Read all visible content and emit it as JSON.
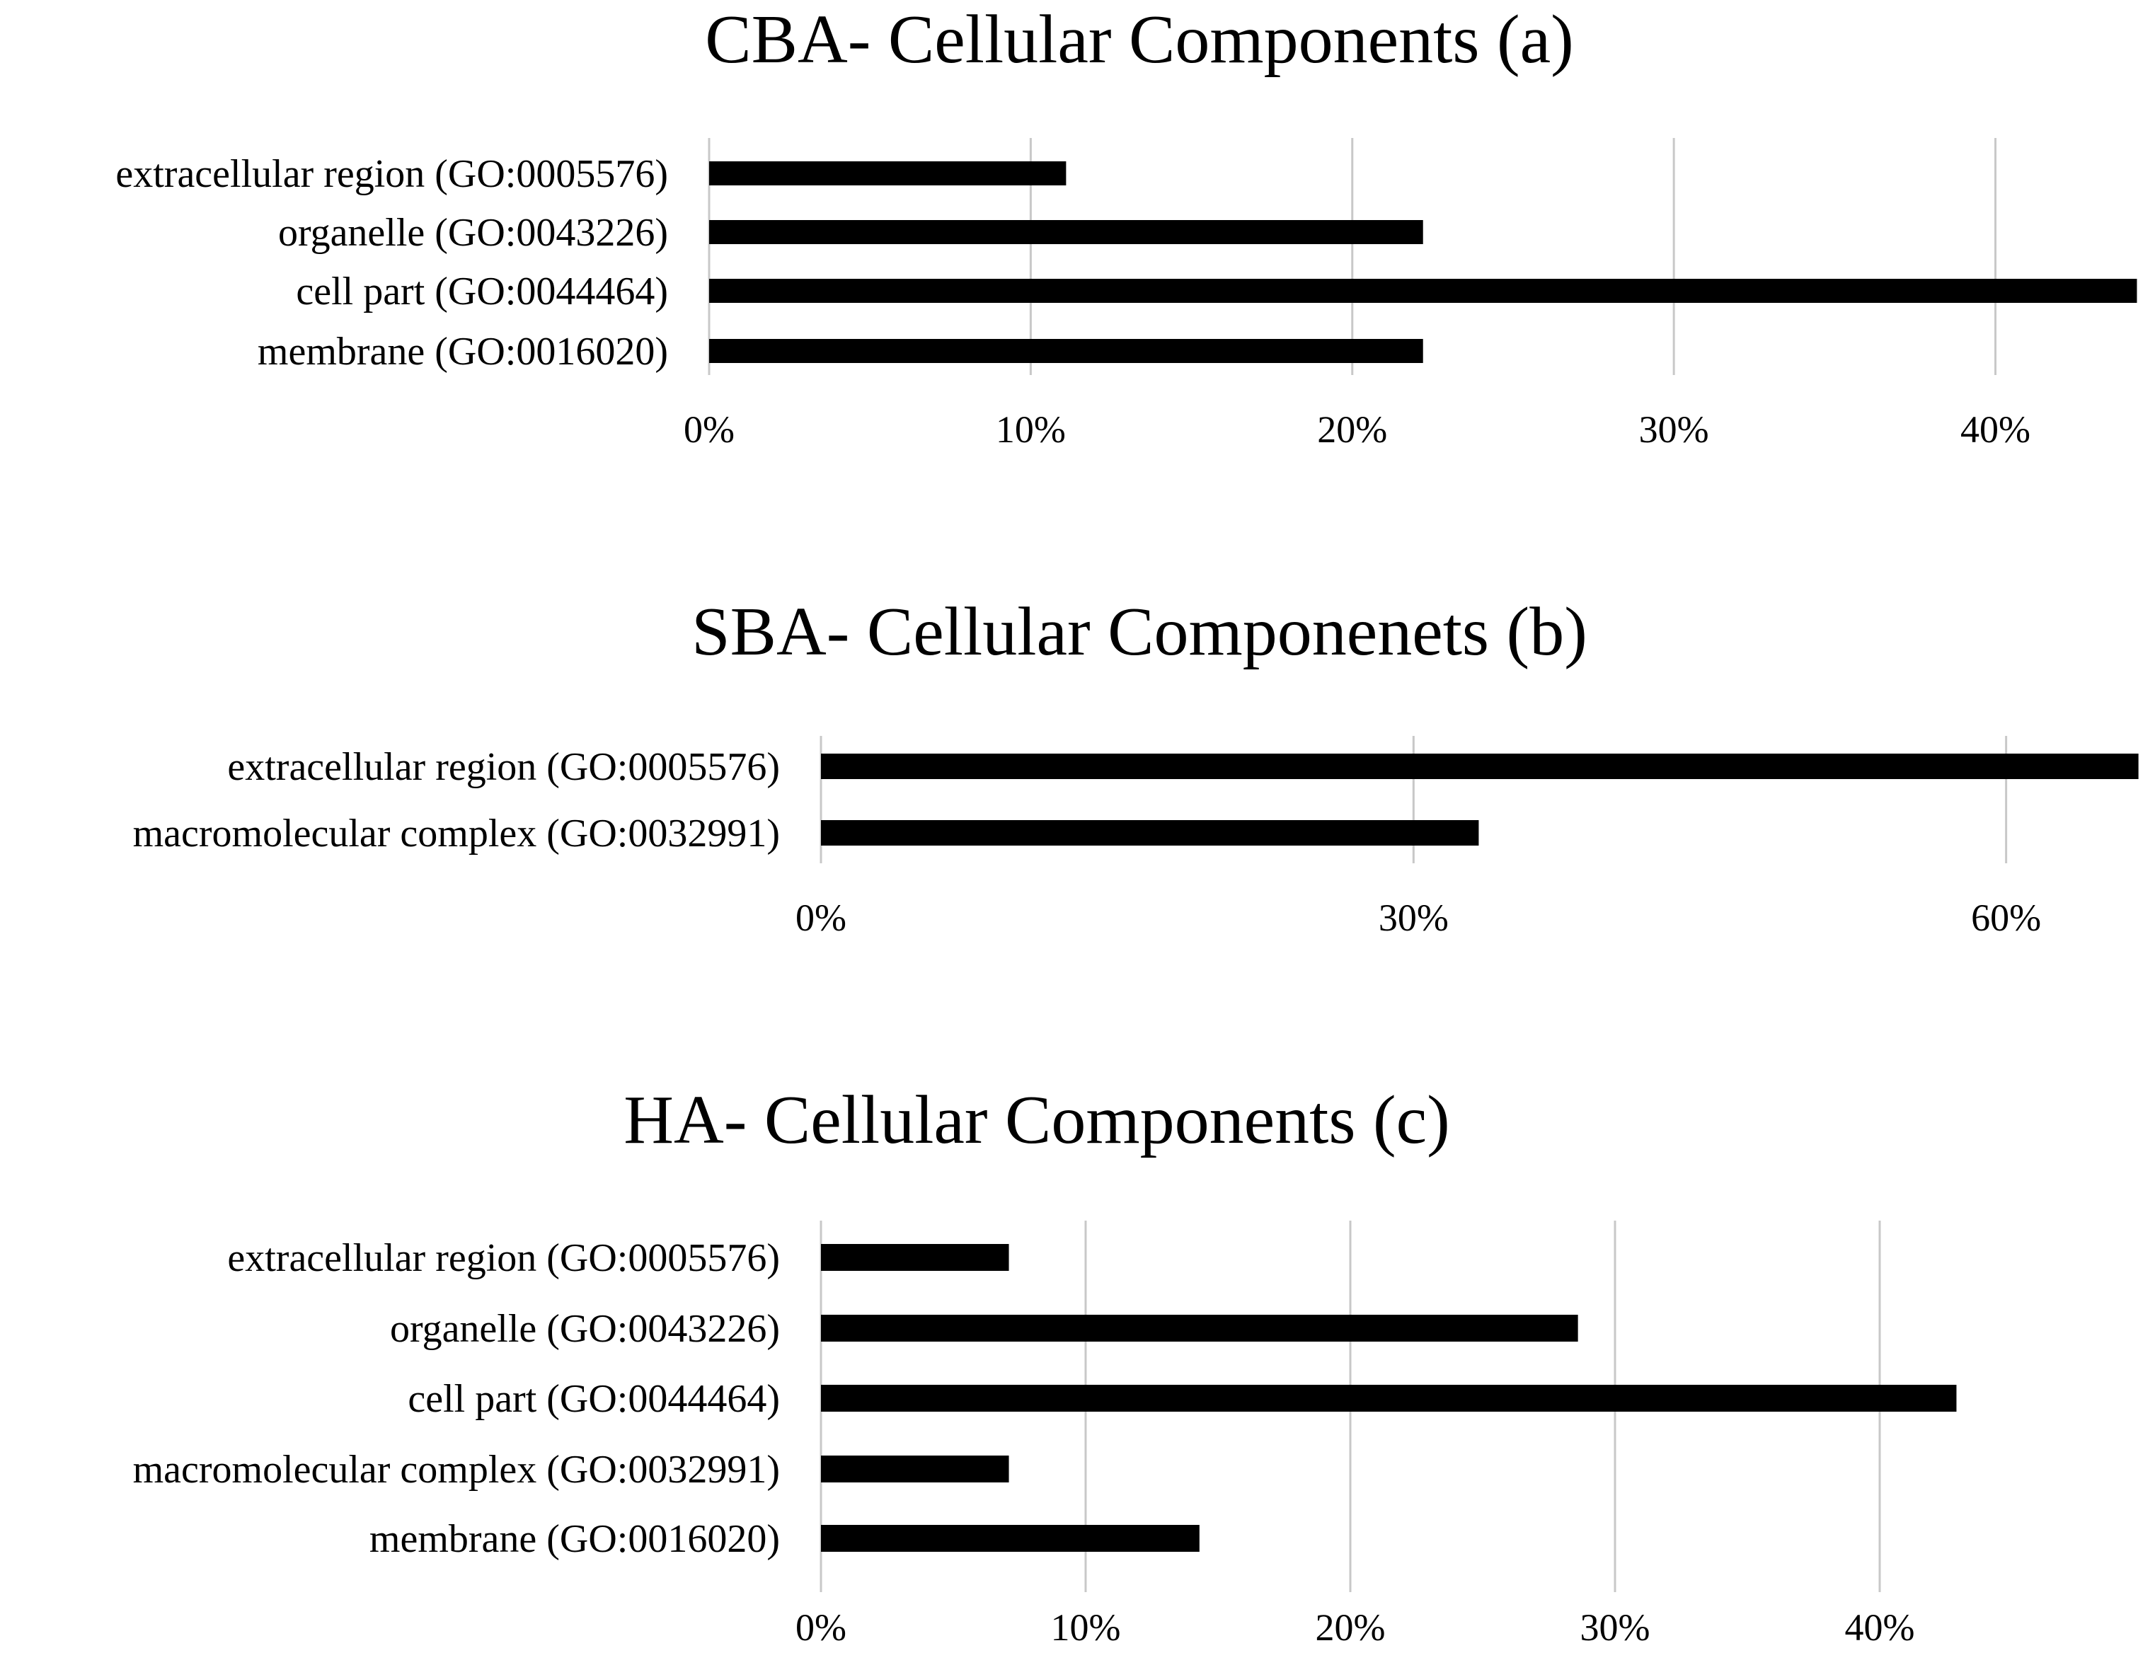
{
  "chart_data": [
    {
      "type": "bar",
      "orientation": "horizontal",
      "title": "CBA- Cellular Components (a)",
      "xlabel": "",
      "ylabel": "",
      "categories": [
        "extracellular region (GO:0005576)",
        "organelle (GO:0043226)",
        "cell part (GO:0044464)",
        "membrane (GO:0016020)"
      ],
      "values": [
        11.1,
        22.2,
        44.4,
        22.2
      ],
      "ticks": [
        "0%",
        "10%",
        "20%",
        "30%",
        "40%"
      ],
      "tick_values": [
        0,
        10,
        20,
        30,
        40
      ],
      "xlim": [
        0,
        44.5
      ],
      "grid": true,
      "color": "#000000"
    },
    {
      "type": "bar",
      "orientation": "horizontal",
      "title": "SBA- Cellular Componenets (b)",
      "xlabel": "",
      "ylabel": "",
      "categories": [
        "extracellular region (GO:0005576)",
        "macromolecular complex (GO:0032991)"
      ],
      "values": [
        66.7,
        33.3
      ],
      "ticks": [
        "0%",
        "30%",
        "60%"
      ],
      "tick_values": [
        0,
        30,
        60
      ],
      "xlim": [
        0,
        67
      ],
      "grid": true,
      "color": "#000000"
    },
    {
      "type": "bar",
      "orientation": "horizontal",
      "title": "HA- Cellular Components (c)",
      "xlabel": "",
      "ylabel": "",
      "categories": [
        "extracellular region (GO:0005576)",
        "organelle (GO:0043226)",
        "cell part (GO:0044464)",
        "macromolecular complex (GO:0032991)",
        "membrane (GO:0016020)"
      ],
      "values": [
        7.1,
        28.6,
        42.9,
        7.1,
        14.3
      ],
      "ticks": [
        "0%",
        "10%",
        "20%",
        "30%",
        "40%"
      ],
      "tick_values": [
        0,
        10,
        20,
        30,
        40
      ],
      "xlim": [
        0,
        50
      ],
      "grid": true,
      "color": "#000000"
    }
  ]
}
